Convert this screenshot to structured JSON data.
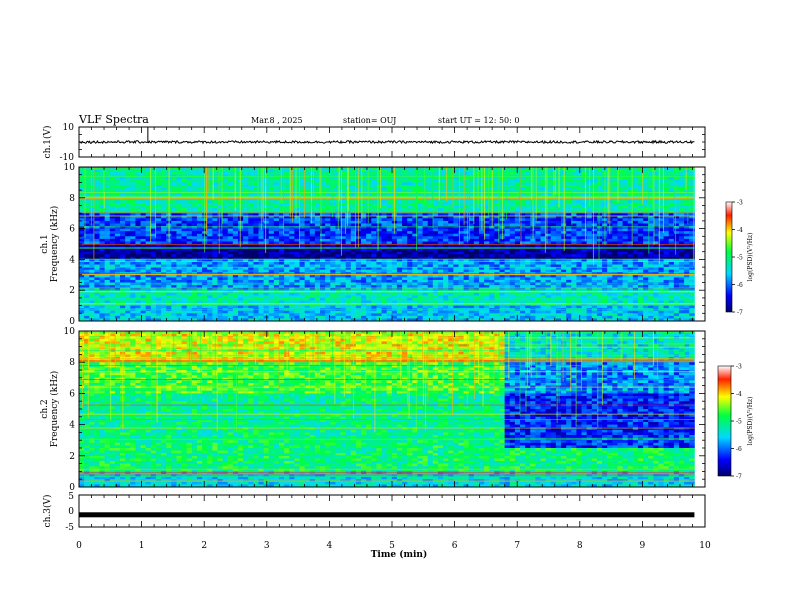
{
  "header": {
    "title": "VLF Spectra",
    "date": "Mar.8 , 2025",
    "station": "station= OUJ",
    "start_ut": "start UT = 12: 50: 0"
  },
  "chart_data": [
    {
      "type": "line",
      "panel": "ch1-waveform",
      "ylabel": "ch.1(V)",
      "ylim": [
        -10,
        10
      ],
      "yticks": [
        "10",
        "-10"
      ],
      "xlim": [
        0,
        10
      ],
      "trace_level": 0,
      "spike_minutes": [
        1.1
      ],
      "grid": false
    },
    {
      "type": "heatmap",
      "panel": "ch1-spectrogram",
      "ylabel": "ch.1\nFrequency (kHz)",
      "ylabel_lines": [
        "ch.1",
        "Frequency (kHz)"
      ],
      "yticks": [
        "0",
        "2",
        "4",
        "6",
        "8",
        "10"
      ],
      "ylim": [
        0,
        10
      ],
      "xlim": [
        0,
        10
      ],
      "data_extent_minutes": 9.83,
      "colorbar": {
        "label": "log(PSD)(V²/Hz)",
        "ticks": [
          "-3",
          "-4",
          "-5",
          "-6",
          "-7"
        ],
        "range": [
          -7,
          -3
        ]
      },
      "mean_level_by_band_khz": [
        {
          "band": [
            0,
            1
          ],
          "level": -5.6
        },
        {
          "band": [
            1,
            2
          ],
          "level": -5.3
        },
        {
          "band": [
            2,
            4
          ],
          "level": -5.8
        },
        {
          "band": [
            4,
            5
          ],
          "level": -6.8
        },
        {
          "band": [
            5,
            7
          ],
          "level": -6.2
        },
        {
          "band": [
            7,
            10
          ],
          "level": -5.2
        }
      ]
    },
    {
      "type": "heatmap",
      "panel": "ch2-spectrogram",
      "ylabel": "ch.2\nFrequency (kHz)",
      "ylabel_lines": [
        "ch.2",
        "Frequency (kHz)"
      ],
      "yticks": [
        "0",
        "2",
        "4",
        "6",
        "8",
        "10"
      ],
      "ylim": [
        0,
        10
      ],
      "xlim": [
        0,
        10
      ],
      "data_extent_minutes": 9.83,
      "transition_minute": 6.8,
      "colorbar": {
        "label": "log(PSD)(V²/Hz)",
        "ticks": [
          "-3",
          "-4",
          "-5",
          "-6",
          "-7"
        ],
        "range": [
          -7,
          -3
        ]
      },
      "mean_level_by_band_khz": [
        {
          "band": [
            0,
            1
          ],
          "level": -5.5
        },
        {
          "band": [
            1,
            3
          ],
          "level": -5.0
        },
        {
          "band": [
            3,
            6
          ],
          "level": -5.1
        },
        {
          "band": [
            6,
            8
          ],
          "level": -4.7
        },
        {
          "band": [
            8,
            10
          ],
          "level": -4.2
        }
      ]
    },
    {
      "type": "line",
      "panel": "ch3-waveform",
      "ylabel": "ch.3(V)",
      "ylim": [
        -5,
        5
      ],
      "yticks": [
        "5",
        "0",
        "-5"
      ],
      "xlim": [
        0,
        10
      ],
      "trace_level": -1.2,
      "grid": false
    }
  ],
  "x_axis": {
    "label": "Time (min)",
    "ticks": [
      "0",
      "1",
      "2",
      "3",
      "4",
      "5",
      "6",
      "7",
      "8",
      "9",
      "10"
    ]
  }
}
